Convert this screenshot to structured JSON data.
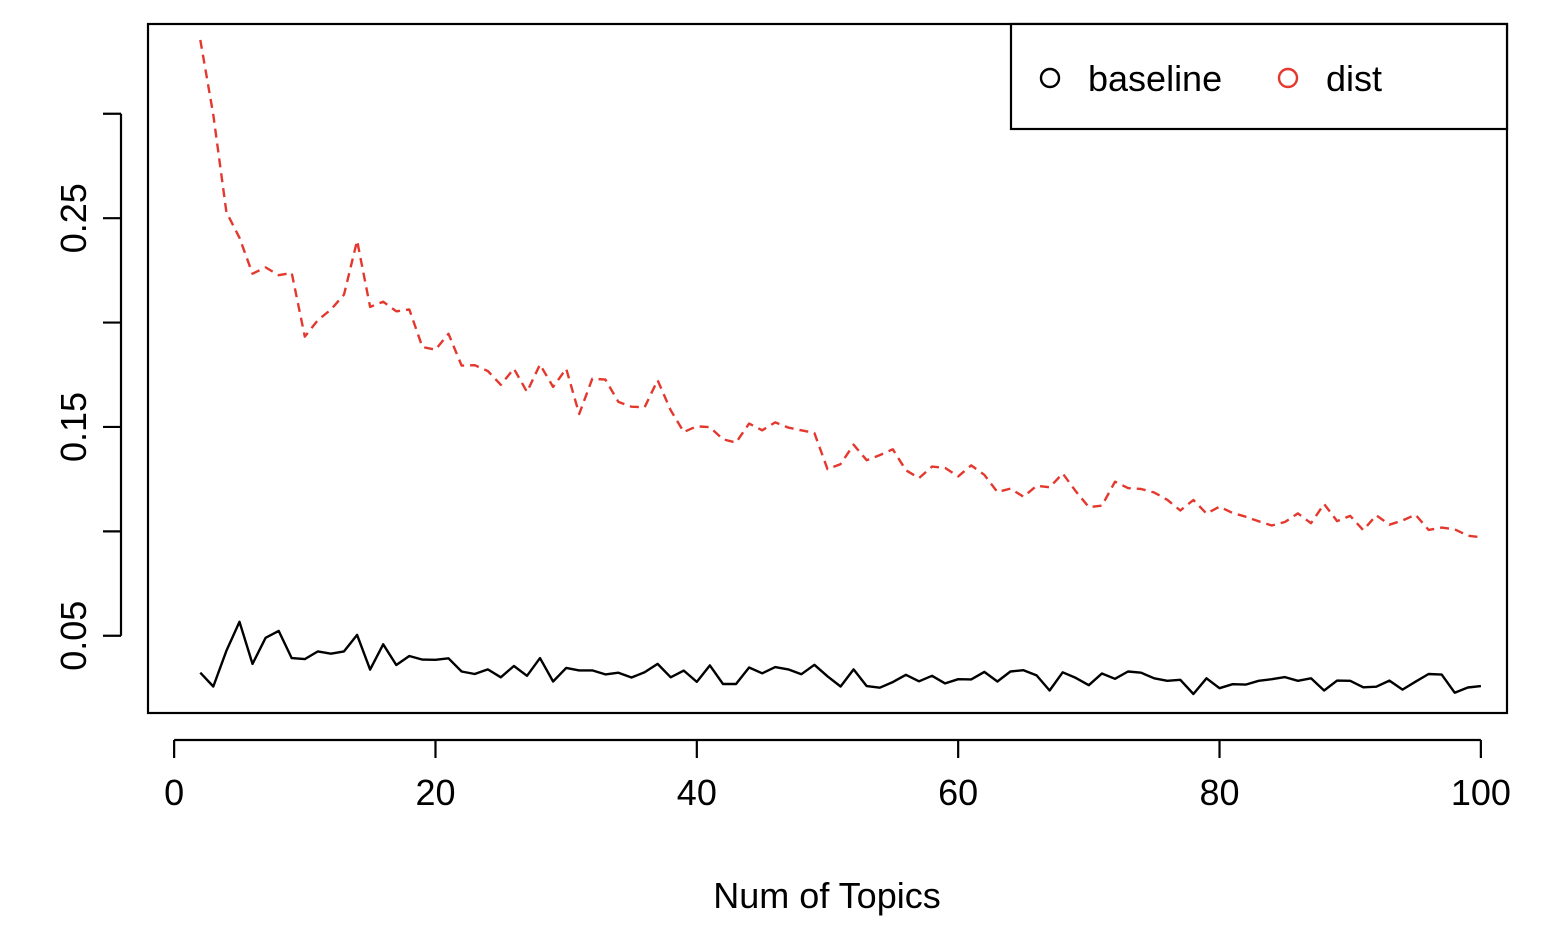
{
  "chart_data": {
    "type": "line",
    "xlabel": "Num of Topics",
    "ylabel": "",
    "title": "",
    "xlim": [
      -2,
      102
    ],
    "ylim": [
      0.013,
      0.343
    ],
    "x_ticks": [
      0,
      20,
      40,
      60,
      80,
      100
    ],
    "x_tick_labels": [
      "0",
      "20",
      "40",
      "60",
      "80",
      "100"
    ],
    "y_ticks": [
      0.05,
      0.1,
      0.15,
      0.2,
      0.25,
      0.3
    ],
    "y_tick_labels": [
      "0.05",
      "",
      "0.15",
      "",
      "0.25",
      ""
    ],
    "legend": {
      "position": "top-right"
    },
    "x": [
      2,
      3,
      4,
      5,
      6,
      7,
      8,
      9,
      10,
      11,
      12,
      13,
      14,
      15,
      16,
      17,
      18,
      19,
      20,
      21,
      22,
      23,
      24,
      25,
      26,
      27,
      28,
      29,
      30,
      31,
      32,
      33,
      34,
      35,
      36,
      37,
      38,
      39,
      40,
      41,
      42,
      43,
      44,
      45,
      46,
      47,
      48,
      49,
      50,
      51,
      52,
      53,
      54,
      55,
      56,
      57,
      58,
      59,
      60,
      61,
      62,
      63,
      64,
      65,
      66,
      67,
      68,
      69,
      70,
      71,
      72,
      73,
      74,
      75,
      76,
      77,
      78,
      79,
      80,
      81,
      82,
      83,
      84,
      85,
      86,
      87,
      88,
      89,
      90,
      91,
      92,
      93,
      94,
      95,
      96,
      97,
      98,
      99,
      100
    ],
    "series": [
      {
        "name": "baseline",
        "color": "#000000",
        "dashed": false,
        "values": [
          0.0323,
          0.0257,
          0.0428,
          0.0567,
          0.0365,
          0.049,
          0.0523,
          0.0393,
          0.0388,
          0.0425,
          0.0414,
          0.0425,
          0.0504,
          0.0338,
          0.0459,
          0.036,
          0.0403,
          0.0386,
          0.0385,
          0.0392,
          0.0329,
          0.0317,
          0.0339,
          0.0301,
          0.0355,
          0.0308,
          0.0393,
          0.0281,
          0.0346,
          0.0334,
          0.0334,
          0.0315,
          0.0323,
          0.03,
          0.0325,
          0.0365,
          0.0301,
          0.0333,
          0.0279,
          0.0358,
          0.0269,
          0.0269,
          0.0348,
          0.032,
          0.035,
          0.0339,
          0.0316,
          0.0361,
          0.0306,
          0.0257,
          0.0339,
          0.0259,
          0.0251,
          0.0278,
          0.0313,
          0.0282,
          0.0308,
          0.0272,
          0.0292,
          0.0291,
          0.0327,
          0.0281,
          0.0329,
          0.0335,
          0.031,
          0.0238,
          0.0325,
          0.0298,
          0.0263,
          0.0319,
          0.0294,
          0.0329,
          0.0323,
          0.0296,
          0.0284,
          0.0289,
          0.0221,
          0.0296,
          0.0249,
          0.0268,
          0.0266,
          0.0284,
          0.0292,
          0.0302,
          0.0284,
          0.0296,
          0.0238,
          0.0285,
          0.0284,
          0.0253,
          0.0256,
          0.0285,
          0.0242,
          0.028,
          0.0317,
          0.0314,
          0.0227,
          0.0252,
          0.0259
        ]
      },
      {
        "name": "dist",
        "color": "#e4382e",
        "dashed": true,
        "values": [
          0.3354,
          0.2995,
          0.2529,
          0.2406,
          0.2234,
          0.2264,
          0.2227,
          0.2238,
          0.1933,
          0.2012,
          0.2062,
          0.2134,
          0.2392,
          0.2075,
          0.21,
          0.2054,
          0.2063,
          0.1883,
          0.187,
          0.1946,
          0.1794,
          0.1796,
          0.1768,
          0.1702,
          0.1779,
          0.1668,
          0.1799,
          0.1692,
          0.1779,
          0.1562,
          0.1731,
          0.1727,
          0.162,
          0.1597,
          0.1594,
          0.1724,
          0.158,
          0.1476,
          0.1503,
          0.1499,
          0.1441,
          0.1425,
          0.1516,
          0.1484,
          0.1522,
          0.1497,
          0.1484,
          0.1471,
          0.1298,
          0.1322,
          0.1415,
          0.1341,
          0.1365,
          0.1393,
          0.1293,
          0.1255,
          0.131,
          0.1304,
          0.1263,
          0.1316,
          0.1271,
          0.1188,
          0.1205,
          0.1166,
          0.1218,
          0.1211,
          0.1277,
          0.1192,
          0.1116,
          0.1123,
          0.1238,
          0.1207,
          0.1203,
          0.1186,
          0.1151,
          0.11,
          0.115,
          0.1085,
          0.1118,
          0.1088,
          0.107,
          0.1048,
          0.1028,
          0.1045,
          0.1086,
          0.1039,
          0.1131,
          0.1049,
          0.1074,
          0.1006,
          0.1077,
          0.1032,
          0.1052,
          0.108,
          0.1007,
          0.1018,
          0.101,
          0.0979,
          0.0972
        ]
      }
    ]
  }
}
